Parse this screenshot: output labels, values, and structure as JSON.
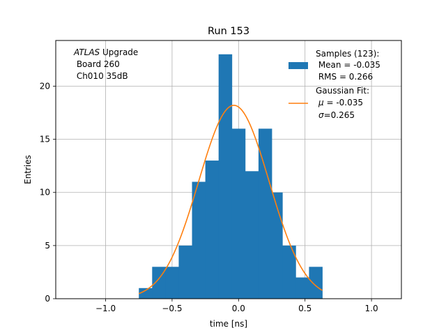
{
  "chart_data": {
    "type": "bar",
    "title": "Run 153",
    "xlabel": "time [ns]",
    "ylabel": "Entries",
    "xlim": [
      -1.375,
      1.225
    ],
    "ylim": [
      0,
      24.3
    ],
    "grid": true,
    "legend_placement": "top-right",
    "xticks": [
      {
        "value": -1.0,
        "label": "−1.0"
      },
      {
        "value": -0.5,
        "label": "−0.5"
      },
      {
        "value": 0.0,
        "label": "0.0"
      },
      {
        "value": 0.5,
        "label": "0.5"
      },
      {
        "value": 1.0,
        "label": "1.0"
      }
    ],
    "yticks": [
      {
        "value": 0,
        "label": "0"
      },
      {
        "value": 5,
        "label": "5"
      },
      {
        "value": 10,
        "label": "10"
      },
      {
        "value": 15,
        "label": "15"
      },
      {
        "value": 20,
        "label": "20"
      }
    ],
    "bin_edges": [
      -0.75,
      -0.65,
      -0.55,
      -0.45,
      -0.35,
      -0.25,
      -0.15,
      -0.05,
      0.05,
      0.15,
      0.25,
      0.33,
      0.43,
      0.53,
      0.63
    ],
    "values": [
      1,
      3,
      3,
      5,
      11,
      13,
      23,
      16,
      12,
      16,
      10,
      5,
      2,
      3
    ],
    "bar_color": "#1f77b4",
    "fit": {
      "type": "gaussian",
      "amplitude": 18.2,
      "mu": -0.035,
      "sigma": 0.265,
      "x_range": [
        -0.75,
        0.63
      ],
      "color": "#ff7f0e"
    },
    "legend": {
      "samples": {
        "line1": "Samples (123):",
        "line2": " Mean = -0.035",
        "line3": " RMS = 0.266"
      },
      "fit": {
        "line1": "Gaussian Fit:",
        "mu_value": " = -0.035",
        "sigma_value": "=0.265"
      }
    },
    "annotation": {
      "italic": "ATLAS",
      "rest": " Upgrade",
      "line2": " Board 260",
      "line3": " Ch010 35dB"
    }
  }
}
